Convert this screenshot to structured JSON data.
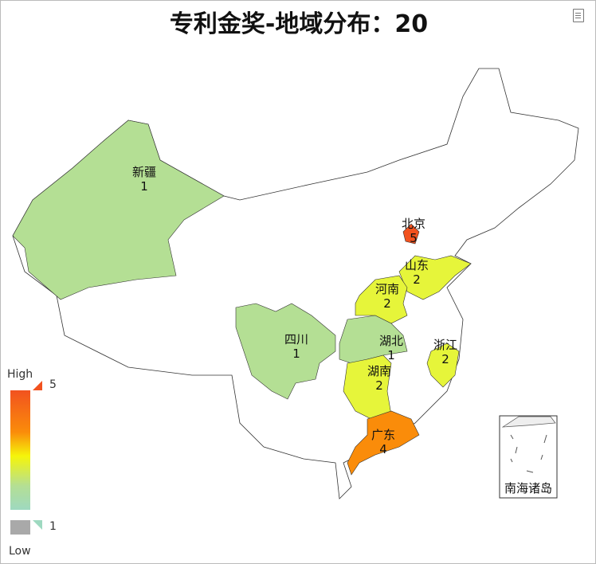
{
  "title": "专利金奖-地域分布：20",
  "toolbox": {
    "icon": "data-view-icon"
  },
  "chart_data": {
    "type": "map",
    "map": "china",
    "regions": [
      {
        "name": "新疆",
        "value": 1,
        "color": "#b4df94"
      },
      {
        "name": "北京",
        "value": 5,
        "color": "#f2521f"
      },
      {
        "name": "山东",
        "value": 2,
        "color": "#e6f53a"
      },
      {
        "name": "河南",
        "value": 2,
        "color": "#e6f53a"
      },
      {
        "name": "湖北",
        "value": 1,
        "color": "#b4df94"
      },
      {
        "name": "浙江",
        "value": 2,
        "color": "#e6f53a"
      },
      {
        "name": "四川",
        "value": 1,
        "color": "#b4df94"
      },
      {
        "name": "湖南",
        "value": 2,
        "color": "#e6f53a"
      },
      {
        "name": "广东",
        "value": 4,
        "color": "#fa8c0a"
      }
    ],
    "inset_label": "南海诸岛",
    "visual_map": {
      "min": 1,
      "max": 5,
      "high_text": "High",
      "low_text": "Low",
      "colors": [
        "#f2521f",
        "#fa8c0a",
        "#f5f50a",
        "#b4df94",
        "#9ed9c0"
      ],
      "out_of_range_color": "#a9a9a9"
    }
  }
}
